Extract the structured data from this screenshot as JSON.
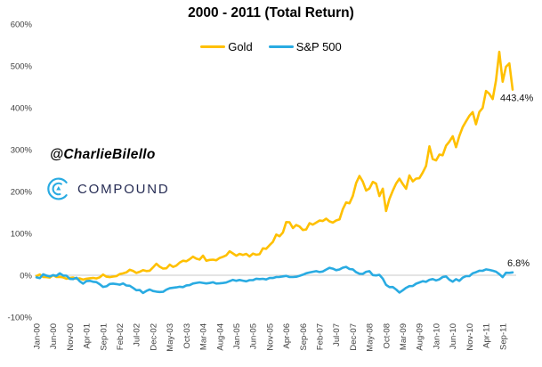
{
  "header": {
    "title": "2000 - 2011 (Total Return)"
  },
  "watermark": "@CharlieBilello",
  "logo": {
    "text": "COMPOUND",
    "icon_color": "#29ABE2",
    "text_color": "#272D55"
  },
  "legend": [
    {
      "label": "Gold",
      "color": "#FFC000"
    },
    {
      "label": "S&P 500",
      "color": "#29ABE2"
    }
  ],
  "chart_data": {
    "type": "line",
    "title": "2000 - 2011 (Total Return)",
    "x_unit": "month",
    "x_range": [
      "Jan-00",
      "Dec-11"
    ],
    "x_tick_interval_months": 5,
    "x_tick_labels": [
      "Jan-00",
      "Jun-00",
      "Nov-00",
      "Apr-01",
      "Sep-01",
      "Feb-02",
      "Jul-02",
      "Dec-02",
      "May-03",
      "Oct-03",
      "Mar-04",
      "Aug-04",
      "Jan-05",
      "Jun-05",
      "Nov-05",
      "Apr-06",
      "Sep-06",
      "Feb-07",
      "Jul-07",
      "Dec-07",
      "May-08",
      "Oct-08",
      "Mar-09",
      "Aug-09",
      "Jan-10",
      "Jun-10",
      "Nov-10",
      "Apr-11",
      "Sep-11"
    ],
    "ylim": [
      -100,
      600
    ],
    "y_tick_labels": [
      "600%",
      "500%",
      "400%",
      "300%",
      "200%",
      "100%",
      "0%",
      "-100%"
    ],
    "gridline_at": 0,
    "grid": "single-zero-line",
    "legend_position": "top-center",
    "series": [
      {
        "name": "Gold",
        "color": "#FFC000",
        "end_label": "443.4%",
        "values": [
          -1.7,
          1.8,
          -4.2,
          -4.5,
          -5.6,
          0.3,
          -4.2,
          -3.8,
          -5.2,
          -8.3,
          -6.6,
          -5.5,
          -8.3,
          -7.7,
          -10.4,
          -8.3,
          -7.3,
          -6.3,
          -7.6,
          -4.9,
          1.7,
          -3.5,
          -4.5,
          -3.1,
          -2.1,
          2.8,
          4.5,
          6.9,
          13.2,
          10.4,
          5.6,
          8.3,
          12.2,
          10.1,
          10.8,
          18.8,
          27.4,
          20.5,
          16.0,
          16.7,
          25.3,
          20.1,
          22.9,
          30.2,
          34.7,
          33.3,
          38.2,
          44.4,
          39.6,
          37.5,
          46.9,
          34.7,
          36.5,
          37.2,
          35.8,
          41.3,
          44.1,
          47.6,
          57.3,
          52.1,
          46.5,
          51.0,
          48.6,
          51.0,
          44.8,
          51.7,
          49.0,
          50.3,
          64.2,
          63.2,
          71.9,
          79.5,
          97.2,
          93.1,
          102.1,
          127.1,
          126.7,
          112.8,
          120.1,
          116.3,
          108.0,
          109.4,
          124.3,
          120.8,
          125.7,
          130.6,
          129.5,
          135.1,
          128.8,
          125.7,
          130.9,
          133.3,
          157.9,
          173.9,
          171.9,
          189.2,
          220.4,
          237.2,
          223.9,
          202.4,
          207.3,
          222.9,
          218.8,
          189.2,
          206.9,
          153.5,
          182.6,
          201.7,
          219.1,
          230.6,
          218.1,
          206.6,
          238.5,
          224.3,
          230.9,
          231.6,
          245.4,
          261.1,
          307.9,
          277.4,
          274.2,
          288.2,
          286.5,
          309.4,
          319.1,
          331.9,
          305.9,
          332.6,
          353.8,
          367.4,
          380.9,
          389.5,
          360.7,
          389.9,
          399.6,
          440.2,
          433.3,
          420.8,
          465.2,
          533.7,
          462.4,
          497.9,
          506.2,
          443.4
        ]
      },
      {
        "name": "S&P 500",
        "color": "#29ABE2",
        "end_label": "6.8%",
        "values": [
          -5.0,
          -6.8,
          2.2,
          -0.8,
          -2.8,
          0.2,
          -1.4,
          4.7,
          -0.6,
          -1.0,
          -8.8,
          -9.1,
          -5.9,
          -14.5,
          -20.0,
          -14.0,
          -13.4,
          -15.5,
          -16.3,
          -21.4,
          -27.8,
          -26.4,
          -20.9,
          -19.9,
          -21.1,
          -22.6,
          -19.6,
          -24.5,
          -25.0,
          -30.3,
          -35.8,
          -35.3,
          -42.4,
          -37.4,
          -34.0,
          -37.6,
          -39.2,
          -40.1,
          -39.5,
          -34.4,
          -31.0,
          -30.1,
          -28.9,
          -27.5,
          -28.3,
          -24.3,
          -23.6,
          -19.7,
          -18.2,
          -17.1,
          -18.3,
          -19.6,
          -18.5,
          -16.9,
          -19.7,
          -19.4,
          -18.5,
          -17.3,
          -14.0,
          -11.0,
          -13.2,
          -11.3,
          -12.9,
          -14.5,
          -11.8,
          -11.7,
          -8.4,
          -9.2,
          -8.5,
          -10.0,
          -6.6,
          -6.6,
          -4.2,
          -4.0,
          -2.8,
          -1.5,
          -4.3,
          -4.2,
          -3.6,
          -1.3,
          1.3,
          4.6,
          6.6,
          8.2,
          9.8,
          7.7,
          8.9,
          13.7,
          17.7,
          15.7,
          12.1,
          13.8,
          18.0,
          19.9,
          14.9,
          14.1,
          7.2,
          3.7,
          3.2,
          8.4,
          9.8,
          0.5,
          -0.4,
          1.0,
          -8.0,
          -22.9,
          -28.4,
          -28.1,
          -34.1,
          -41.2,
          -36.0,
          -29.9,
          -26.0,
          -25.8,
          -20.2,
          -17.3,
          -14.2,
          -15.8,
          -10.8,
          -9.1,
          -12.4,
          -9.7,
          -4.2,
          -2.8,
          -10.6,
          -15.3,
          -9.4,
          -13.5,
          -5.8,
          -2.2,
          -2.2,
          4.7,
          7.2,
          10.9,
          10.7,
          14.0,
          12.7,
          10.9,
          8.6,
          2.7,
          -4.5,
          5.9,
          5.7,
          6.8
        ]
      }
    ]
  }
}
